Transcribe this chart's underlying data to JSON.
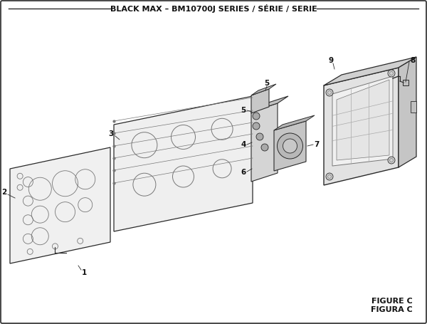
{
  "title": "BLACK MAX – BM10700J SERIES / SÉRIE / SERIE",
  "figure_label": "FIGURE C",
  "figure_label2": "FIGURA C",
  "bg_color": "#ffffff",
  "border_color": "#1a1a1a",
  "text_color": "#111111",
  "title_fontsize": 8,
  "label_fontsize": 8,
  "part_label_fontsize": 7.5,
  "figsize": [
    6.0,
    4.55
  ],
  "dpi": 100
}
